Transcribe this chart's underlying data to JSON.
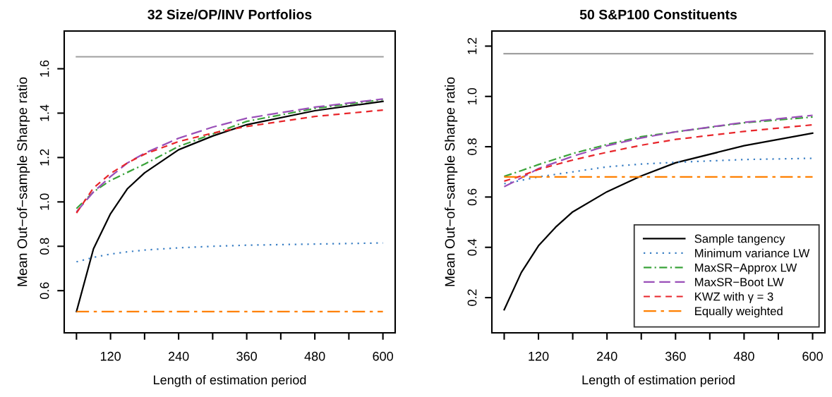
{
  "chart_data": [
    {
      "type": "line",
      "title": "32 Size/OP/INV Portfolios",
      "xlabel": "Length of estimation period",
      "ylabel": "Mean Out−of−sample Sharpe ratio",
      "xlim": [
        38.4,
        621.6
      ],
      "ylim": [
        0.41,
        1.77
      ],
      "xticks": [
        {
          "value": 60,
          "label": null
        },
        120,
        {
          "value": 180,
          "label": null
        },
        240,
        {
          "value": 300,
          "label": null
        },
        360,
        {
          "value": 420,
          "label": null
        },
        480,
        {
          "value": 540,
          "label": null
        },
        600
      ],
      "yticks": [
        0.6,
        0.8,
        {
          "value": 1.0,
          "label": "1.0"
        },
        1.2,
        1.4,
        1.6
      ],
      "grid": false,
      "legend": false,
      "series": [
        {
          "color": "#a0a0a0",
          "line_style": "solid",
          "x": [
            60,
            600
          ],
          "values": [
            1.654,
            1.654
          ]
        },
        {
          "color": "#000000",
          "line_style": "solid",
          "x": [
            60,
            90,
            120,
            150,
            180,
            240,
            300,
            360,
            480,
            600
          ],
          "values": [
            0.506,
            0.789,
            0.947,
            1.06,
            1.131,
            1.235,
            1.297,
            1.348,
            1.411,
            1.453
          ]
        },
        {
          "color": "#3a7fc4",
          "line_style": "dotted",
          "x": [
            60,
            90,
            120,
            150,
            180,
            240,
            300,
            360,
            480,
            600
          ],
          "values": [
            0.73,
            0.75,
            0.765,
            0.775,
            0.783,
            0.793,
            0.8,
            0.805,
            0.81,
            0.815
          ]
        },
        {
          "color": "#3aa33a",
          "line_style": "dashdot",
          "x": [
            60,
            90,
            120,
            180,
            240,
            300,
            360,
            480,
            600
          ],
          "values": [
            0.97,
            1.045,
            1.097,
            1.17,
            1.25,
            1.306,
            1.363,
            1.421,
            1.461
          ]
        },
        {
          "color": "#9a4fb8",
          "line_style": "longdash",
          "x": [
            60,
            90,
            120,
            150,
            180,
            240,
            300,
            360,
            480,
            600
          ],
          "values": [
            0.955,
            1.045,
            1.114,
            1.176,
            1.219,
            1.287,
            1.337,
            1.377,
            1.427,
            1.464
          ]
        },
        {
          "color": "#e8262b",
          "line_style": "dashed",
          "x": [
            60,
            90,
            120,
            150,
            180,
            240,
            300,
            360,
            480,
            600
          ],
          "values": [
            0.95,
            1.063,
            1.128,
            1.176,
            1.215,
            1.272,
            1.31,
            1.34,
            1.385,
            1.414
          ]
        },
        {
          "color": "#ff8000",
          "line_style": "longdashdot",
          "x": [
            60,
            600
          ],
          "values": [
            0.506,
            0.506
          ]
        }
      ]
    },
    {
      "type": "line",
      "title": "50 S&P100 Constituents",
      "xlabel": "Length of estimation period",
      "ylabel": "Mean Out−of−sample Sharpe ratio",
      "xlim": [
        38.4,
        621.6
      ],
      "ylim": [
        0.06,
        1.26
      ],
      "xticks": [
        {
          "value": 60,
          "label": null
        },
        120,
        {
          "value": 180,
          "label": null
        },
        240,
        {
          "value": 300,
          "label": null
        },
        360,
        {
          "value": 420,
          "label": null
        },
        480,
        {
          "value": 540,
          "label": null
        },
        600
      ],
      "yticks": [
        0.2,
        0.4,
        0.6,
        0.8,
        {
          "value": 1.0,
          "label": "1.0"
        },
        1.2
      ],
      "grid": false,
      "legend": "bottom right",
      "series": [
        {
          "color": "#a0a0a0",
          "line_style": "solid",
          "x": [
            60,
            600
          ],
          "values": [
            1.17,
            1.17
          ]
        },
        {
          "name": "Sample tangency",
          "color": "#000000",
          "line_style": "solid",
          "x": [
            60,
            90,
            120,
            150,
            180,
            240,
            300,
            360,
            480,
            600
          ],
          "values": [
            0.152,
            0.3,
            0.406,
            0.48,
            0.541,
            0.621,
            0.684,
            0.736,
            0.804,
            0.854
          ]
        },
        {
          "name": "Minimum variance LW",
          "color": "#3a7fc4",
          "line_style": "dotted",
          "x": [
            60,
            120,
            180,
            240,
            300,
            360,
            480,
            600
          ],
          "values": [
            0.653,
            0.68,
            0.7,
            0.72,
            0.731,
            0.738,
            0.749,
            0.754
          ]
        },
        {
          "name": "MaxSR−Approx LW",
          "color": "#3aa33a",
          "line_style": "dashdot",
          "x": [
            60,
            90,
            120,
            180,
            240,
            300,
            360,
            480,
            600
          ],
          "values": [
            0.682,
            0.705,
            0.729,
            0.773,
            0.809,
            0.84,
            0.859,
            0.895,
            0.918
          ]
        },
        {
          "name": "MaxSR−Boot LW",
          "color": "#9a4fb8",
          "line_style": "longdash",
          "x": [
            60,
            90,
            120,
            180,
            240,
            300,
            360,
            480,
            600
          ],
          "values": [
            0.641,
            0.676,
            0.713,
            0.762,
            0.804,
            0.835,
            0.859,
            0.897,
            0.925
          ]
        },
        {
          "name": "KWZ with γ = 3",
          "color": "#e8262b",
          "line_style": "dashed",
          "x": [
            60,
            90,
            120,
            180,
            240,
            300,
            360,
            480,
            600
          ],
          "values": [
            0.663,
            0.684,
            0.71,
            0.747,
            0.778,
            0.806,
            0.829,
            0.861,
            0.887
          ]
        },
        {
          "name": "Equally weighted",
          "color": "#ff8000",
          "line_style": "longdashdot",
          "x": [
            60,
            600
          ],
          "values": [
            0.68,
            0.68
          ]
        }
      ]
    }
  ]
}
